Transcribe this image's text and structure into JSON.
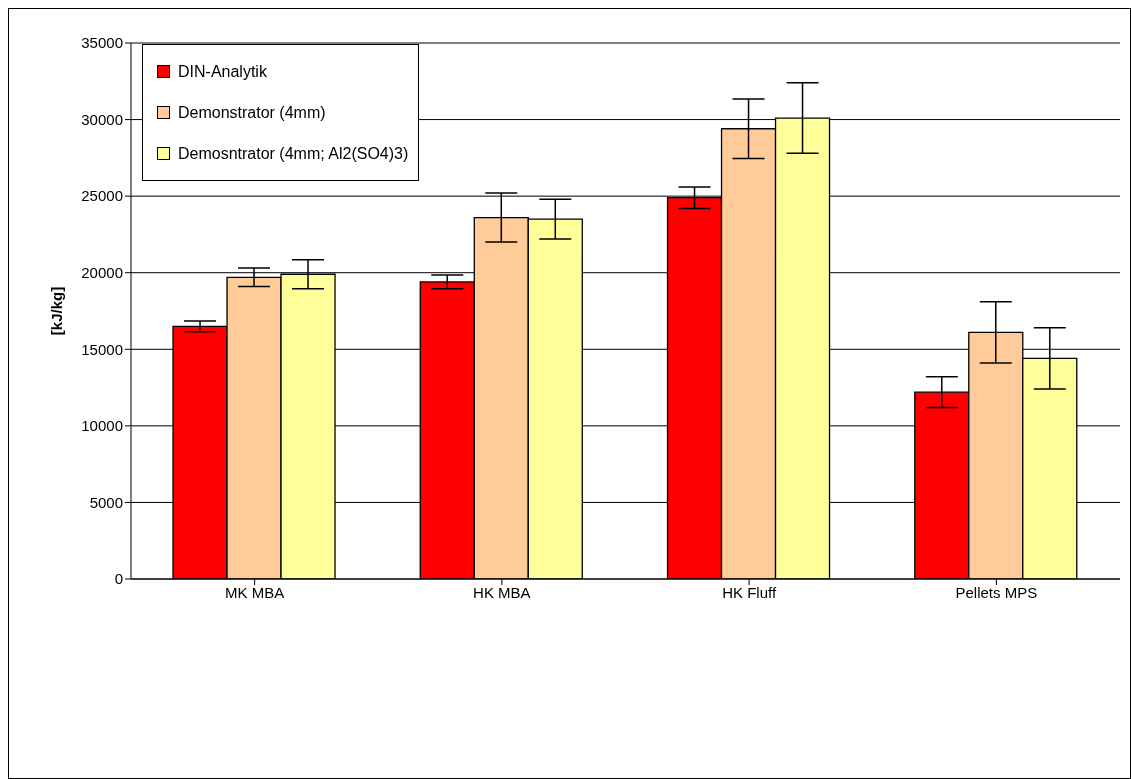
{
  "chart_data": {
    "type": "bar",
    "ylabel": "[kJ/kg]",
    "categories": [
      "MK MBA",
      "HK MBA",
      "HK Fluff",
      "Pellets MPS"
    ],
    "series": [
      {
        "name": "DIN-Analytik",
        "color": "#ff0000",
        "values": [
          16500,
          19400,
          24900,
          12200
        ],
        "errors": [
          350,
          450,
          700,
          1000
        ]
      },
      {
        "name": "Demonstrator (4mm)",
        "color": "#ffcc99",
        "values": [
          19700,
          23600,
          29400,
          16100
        ],
        "errors": [
          600,
          1600,
          1950,
          2000
        ]
      },
      {
        "name": "Demosntrator (4mm; Al2(SO4)3)",
        "color": "#ffff99",
        "values": [
          19900,
          23500,
          30100,
          14400
        ],
        "errors": [
          950,
          1300,
          2300,
          2000
        ]
      }
    ],
    "ylim": [
      0,
      35000
    ],
    "yticks": [
      0,
      5000,
      10000,
      15000,
      20000,
      25000,
      30000,
      35000
    ],
    "grid": "y",
    "legend": "top left"
  }
}
